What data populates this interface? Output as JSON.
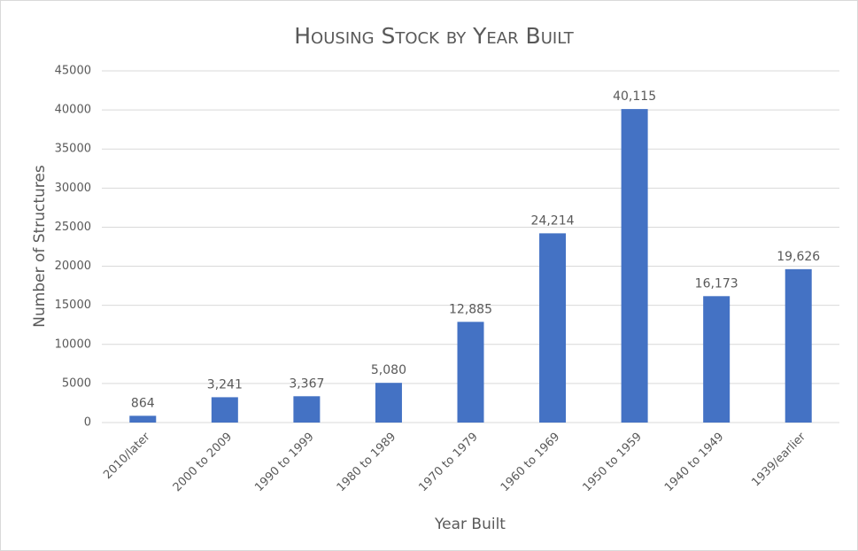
{
  "chart_data": {
    "type": "bar",
    "title": "Housing Stock by Year Built",
    "categories": [
      "2010/later",
      "2000 to 2009",
      "1990 to 1999",
      "1980 to 1989",
      "1970 to 1979",
      "1960 to 1969",
      "1950 to 1959",
      "1940 to 1949",
      "1939/earlier"
    ],
    "values": [
      864,
      3241,
      3367,
      5080,
      12885,
      24214,
      40115,
      16173,
      19626
    ],
    "value_labels": [
      "864",
      "3,241",
      "3,367",
      "5,080",
      "12,885",
      "24,214",
      "40,115",
      "16,173",
      "19,626"
    ],
    "color": "#4472c4",
    "x_label": "Year Built",
    "y_label": "Number of Structures",
    "ylim": [
      0,
      45000
    ],
    "yticks": [
      0,
      5000,
      10000,
      15000,
      20000,
      25000,
      30000,
      35000,
      40000,
      45000
    ],
    "grid": true
  }
}
